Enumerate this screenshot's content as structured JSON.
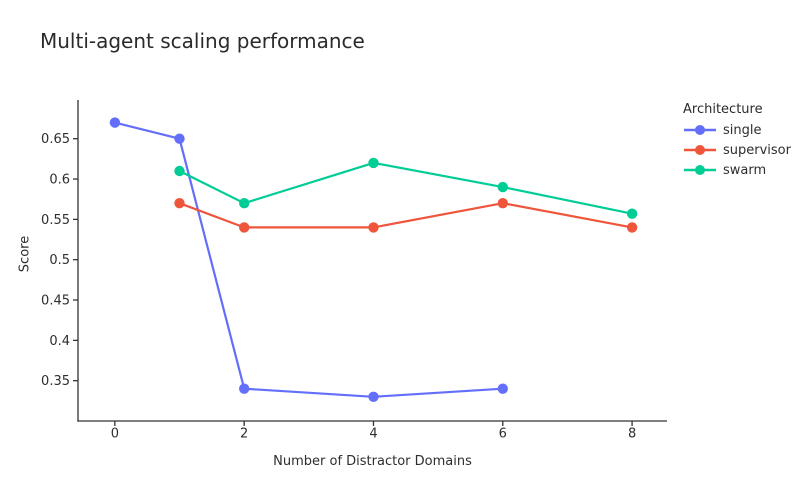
{
  "chart_data": {
    "type": "line",
    "title": "Multi-agent scaling performance",
    "xlabel": "Number of Distractor Domains",
    "ylabel": "Score",
    "legend_title": "Architecture",
    "legend_position": "right",
    "grid": false,
    "background": "#ffffff",
    "axis_color": "#333333",
    "text_color": "#2e2e2e",
    "xlim": [
      -0.57,
      8.54
    ],
    "ylim": [
      0.3,
      0.698
    ],
    "xticks": {
      "values": [
        0,
        2,
        4,
        6,
        8
      ],
      "labels": [
        "0",
        "2",
        "4",
        "6",
        "8"
      ]
    },
    "yticks": {
      "values": [
        0.35,
        0.4,
        0.45,
        0.5,
        0.55,
        0.6,
        0.65
      ],
      "labels": [
        "0.35",
        "0.4",
        "0.45",
        "0.5",
        "0.55",
        "0.6",
        "0.65"
      ]
    },
    "series": [
      {
        "name": "single",
        "color": "#636EFA",
        "x": [
          0,
          1,
          2,
          4,
          6
        ],
        "y": [
          0.67,
          0.65,
          0.34,
          0.33,
          0.34
        ]
      },
      {
        "name": "supervisor",
        "color": "#EF553B",
        "x": [
          1,
          2,
          4,
          6,
          8
        ],
        "y": [
          0.57,
          0.54,
          0.54,
          0.57,
          0.54
        ]
      },
      {
        "name": "swarm",
        "color": "#00CC96",
        "x": [
          1,
          2,
          4,
          6,
          8
        ],
        "y": [
          0.61,
          0.57,
          0.62,
          0.59,
          0.557
        ]
      }
    ],
    "marker_diameter": 10.4,
    "line_width": 2.2
  }
}
